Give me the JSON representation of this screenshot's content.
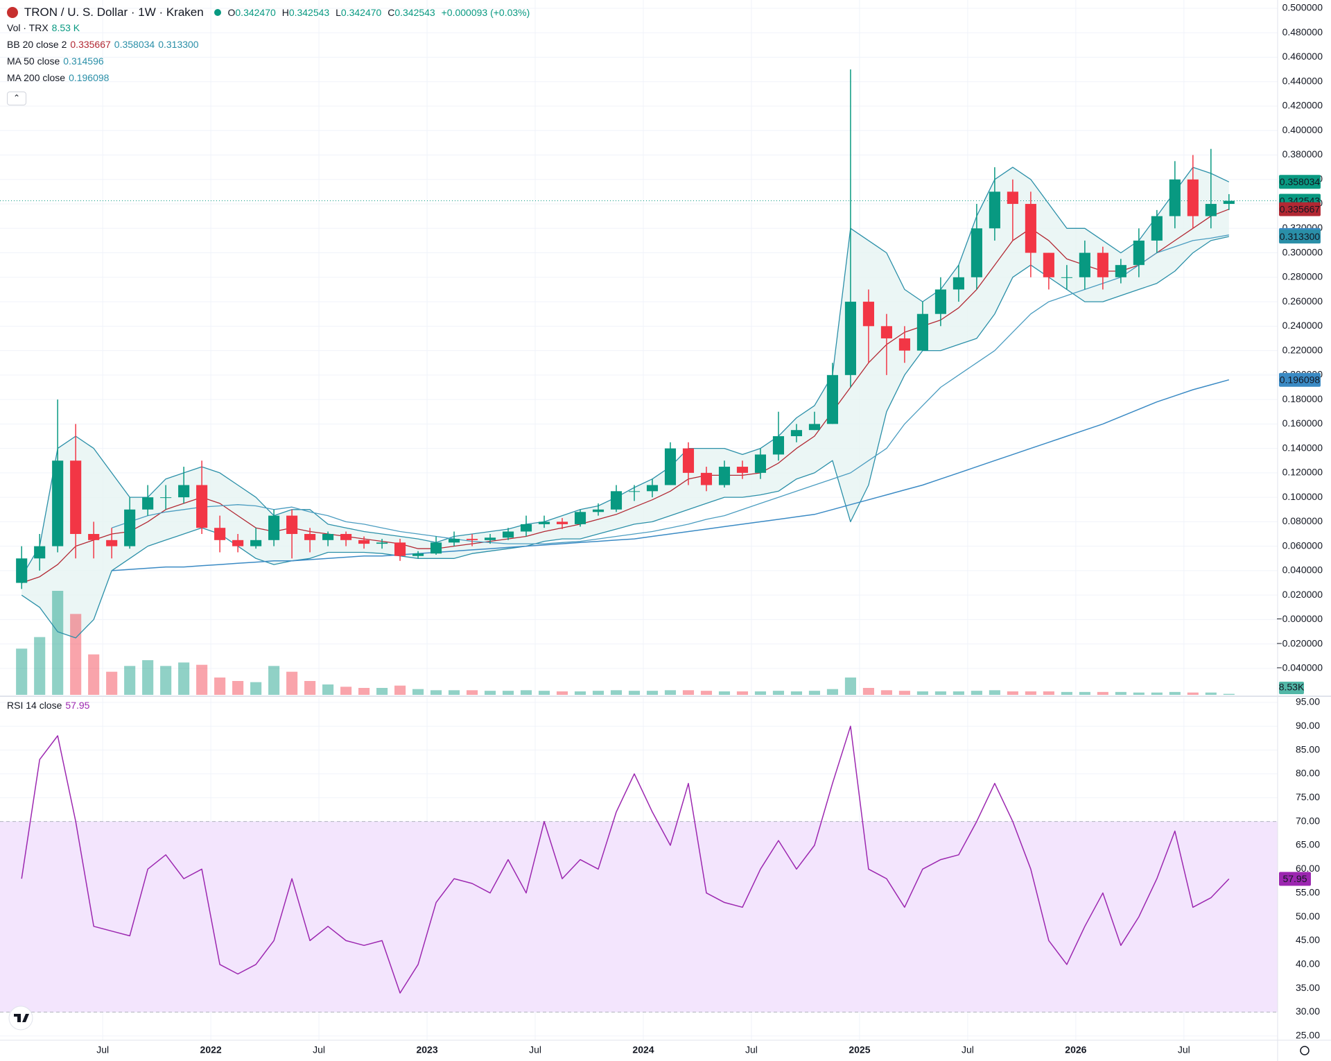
{
  "chart_data": [
    {
      "type": "candlestick",
      "title": "TRON / U. S. Dollar · 1W · Kraken",
      "ohlc_labels": [
        "O",
        "H",
        "L",
        "C"
      ],
      "ohlc_values": [
        "0.342470",
        "0.342543",
        "0.342470",
        "0.342543"
      ],
      "change": "+0.000093 (+0.03%)",
      "indicators": [
        {
          "name": "Vol · TRX",
          "values": [
            "8.53 K"
          ],
          "colors": [
            "#089981"
          ]
        },
        {
          "name": "BB 20 close 2",
          "values": [
            "0.335667",
            "0.358034",
            "0.313300"
          ],
          "colors": [
            "#b22833",
            "#2a8fa8",
            "#2a8fa8"
          ]
        },
        {
          "name": "MA 50 close",
          "values": [
            "0.314596"
          ],
          "colors": [
            "#2a8fa8"
          ]
        },
        {
          "name": "MA 200 close",
          "values": [
            "0.196098"
          ],
          "colors": [
            "#2a8fa8"
          ]
        }
      ],
      "up_color": "#089981",
      "down_color": "#f23645",
      "xlim": [
        -1.2,
        69.7
      ],
      "xticks": [
        {
          "value": 4.5,
          "label": "Jul"
        },
        {
          "value": 10.5,
          "label": "2022"
        },
        {
          "value": 16.5,
          "label": "Jul"
        },
        {
          "value": 22.5,
          "label": "2023"
        },
        {
          "value": 28.5,
          "label": "Jul"
        },
        {
          "value": 34.5,
          "label": "2024"
        },
        {
          "value": 40.5,
          "label": "Jul"
        },
        {
          "value": 46.5,
          "label": "2025"
        },
        {
          "value": 52.5,
          "label": "Jul"
        },
        {
          "value": 58.5,
          "label": "2026"
        },
        {
          "value": 64.5,
          "label": "Jul"
        }
      ],
      "ylim": [
        -0.0616,
        0.5068
      ],
      "yticks": [
        {
          "value": 0.5,
          "label": "0.500000"
        },
        {
          "value": 0.48,
          "label": "0.480000"
        },
        {
          "value": 0.46,
          "label": "0.460000"
        },
        {
          "value": 0.44,
          "label": "0.440000"
        },
        {
          "value": 0.42,
          "label": "0.420000"
        },
        {
          "value": 0.4,
          "label": "0.400000"
        },
        {
          "value": 0.38,
          "label": "0.380000"
        },
        {
          "value": 0.36,
          "label": "0.360000"
        },
        {
          "value": 0.34,
          "label": "0.340000"
        },
        {
          "value": 0.32,
          "label": "0.320000"
        },
        {
          "value": 0.3,
          "label": "0.300000"
        },
        {
          "value": 0.28,
          "label": "0.280000"
        },
        {
          "value": 0.26,
          "label": "0.260000"
        },
        {
          "value": 0.24,
          "label": "0.240000"
        },
        {
          "value": 0.22,
          "label": "0.220000"
        },
        {
          "value": 0.2,
          "label": "0.200000"
        },
        {
          "value": 0.18,
          "label": "0.180000"
        },
        {
          "value": 0.16,
          "label": "0.160000"
        },
        {
          "value": 0.14,
          "label": "0.140000"
        },
        {
          "value": 0.12,
          "label": "0.120000"
        },
        {
          "value": 0.1,
          "label": "0.100000"
        },
        {
          "value": 0.08,
          "label": "0.080000"
        },
        {
          "value": 0.06,
          "label": "0.060000"
        },
        {
          "value": 0.04,
          "label": "0.040000"
        },
        {
          "value": 0.02,
          "label": "0.020000"
        },
        {
          "value": 0,
          "label": "−0.000000"
        },
        {
          "value": -0.02,
          "label": "−0.020000"
        },
        {
          "value": -0.04,
          "label": "−0.040000"
        }
      ],
      "open": [
        0.03,
        0.05,
        0.06,
        0.13,
        0.07,
        0.065,
        0.06,
        0.09,
        0.1,
        0.1,
        0.11,
        0.075,
        0.065,
        0.06,
        0.065,
        0.085,
        0.07,
        0.065,
        0.07,
        0.065,
        0.062,
        0.063,
        0.052,
        0.054,
        0.063,
        0.066,
        0.065,
        0.067,
        0.072,
        0.078,
        0.08,
        0.078,
        0.088,
        0.09,
        0.105,
        0.105,
        0.11,
        0.14,
        0.12,
        0.11,
        0.125,
        0.12,
        0.135,
        0.15,
        0.155,
        0.16,
        0.2,
        0.26,
        0.24,
        0.23,
        0.22,
        0.25,
        0.27,
        0.28,
        0.32,
        0.35,
        0.34,
        0.3,
        0.28,
        0.28,
        0.3,
        0.28,
        0.29,
        0.31,
        0.33,
        0.36,
        0.33,
        0.34
      ],
      "high": [
        0.06,
        0.07,
        0.18,
        0.16,
        0.08,
        0.075,
        0.1,
        0.11,
        0.11,
        0.125,
        0.13,
        0.085,
        0.07,
        0.075,
        0.09,
        0.09,
        0.075,
        0.072,
        0.072,
        0.068,
        0.066,
        0.066,
        0.056,
        0.068,
        0.072,
        0.07,
        0.07,
        0.075,
        0.085,
        0.085,
        0.083,
        0.09,
        0.095,
        0.11,
        0.11,
        0.115,
        0.145,
        0.145,
        0.125,
        0.13,
        0.13,
        0.14,
        0.17,
        0.16,
        0.17,
        0.21,
        0.45,
        0.27,
        0.25,
        0.24,
        0.26,
        0.28,
        0.29,
        0.34,
        0.37,
        0.36,
        0.35,
        0.3,
        0.29,
        0.31,
        0.305,
        0.295,
        0.32,
        0.335,
        0.375,
        0.38,
        0.385,
        0.348
      ],
      "low": [
        0.025,
        0.04,
        0.055,
        0.05,
        0.05,
        0.05,
        0.058,
        0.085,
        0.09,
        0.095,
        0.07,
        0.055,
        0.055,
        0.058,
        0.06,
        0.05,
        0.055,
        0.06,
        0.06,
        0.058,
        0.058,
        0.048,
        0.05,
        0.053,
        0.06,
        0.06,
        0.062,
        0.065,
        0.068,
        0.075,
        0.074,
        0.076,
        0.085,
        0.088,
        0.097,
        0.1,
        0.11,
        0.11,
        0.105,
        0.108,
        0.115,
        0.115,
        0.13,
        0.145,
        0.155,
        0.16,
        0.19,
        0.21,
        0.2,
        0.21,
        0.22,
        0.24,
        0.26,
        0.27,
        0.31,
        0.31,
        0.28,
        0.27,
        0.27,
        0.27,
        0.27,
        0.275,
        0.28,
        0.3,
        0.32,
        0.32,
        0.32,
        0.335
      ],
      "close": [
        0.05,
        0.06,
        0.13,
        0.07,
        0.065,
        0.06,
        0.09,
        0.1,
        0.1,
        0.11,
        0.075,
        0.065,
        0.06,
        0.065,
        0.085,
        0.07,
        0.065,
        0.07,
        0.065,
        0.062,
        0.063,
        0.052,
        0.054,
        0.063,
        0.066,
        0.065,
        0.067,
        0.072,
        0.078,
        0.08,
        0.078,
        0.088,
        0.09,
        0.105,
        0.105,
        0.11,
        0.14,
        0.12,
        0.11,
        0.125,
        0.12,
        0.135,
        0.15,
        0.155,
        0.16,
        0.2,
        0.26,
        0.24,
        0.23,
        0.22,
        0.25,
        0.27,
        0.28,
        0.32,
        0.35,
        0.34,
        0.3,
        0.28,
        0.28,
        0.3,
        0.28,
        0.29,
        0.31,
        0.33,
        0.36,
        0.33,
        0.34,
        0.342543
      ],
      "volume": [
        400,
        500,
        900,
        700,
        350,
        200,
        250,
        300,
        250,
        280,
        260,
        150,
        120,
        110,
        250,
        200,
        120,
        90,
        70,
        60,
        60,
        80,
        50,
        40,
        40,
        40,
        35,
        35,
        40,
        35,
        30,
        30,
        35,
        40,
        35,
        35,
        40,
        40,
        35,
        30,
        30,
        30,
        35,
        30,
        35,
        50,
        150,
        60,
        40,
        35,
        30,
        30,
        30,
        35,
        40,
        30,
        30,
        30,
        25,
        25,
        25,
        25,
        20,
        20,
        25,
        20,
        20,
        8.53
      ],
      "bb_basis": [
        0.03,
        0.035,
        0.045,
        0.06,
        0.065,
        0.07,
        0.072,
        0.08,
        0.09,
        0.095,
        0.1,
        0.095,
        0.085,
        0.075,
        0.072,
        0.075,
        0.072,
        0.07,
        0.068,
        0.066,
        0.064,
        0.062,
        0.058,
        0.058,
        0.06,
        0.062,
        0.064,
        0.066,
        0.068,
        0.072,
        0.075,
        0.078,
        0.082,
        0.086,
        0.092,
        0.098,
        0.105,
        0.115,
        0.118,
        0.118,
        0.118,
        0.12,
        0.128,
        0.14,
        0.15,
        0.17,
        0.19,
        0.21,
        0.225,
        0.235,
        0.24,
        0.245,
        0.255,
        0.27,
        0.29,
        0.31,
        0.32,
        0.31,
        0.295,
        0.29,
        0.285,
        0.285,
        0.29,
        0.3,
        0.31,
        0.32,
        0.33,
        0.335667
      ],
      "bb_upper": [
        0.035,
        0.06,
        0.14,
        0.15,
        0.14,
        0.12,
        0.1,
        0.1,
        0.115,
        0.12,
        0.125,
        0.12,
        0.11,
        0.1,
        0.085,
        0.09,
        0.09,
        0.078,
        0.075,
        0.072,
        0.07,
        0.068,
        0.066,
        0.063,
        0.068,
        0.07,
        0.072,
        0.074,
        0.078,
        0.08,
        0.085,
        0.09,
        0.093,
        0.1,
        0.108,
        0.115,
        0.125,
        0.14,
        0.14,
        0.14,
        0.135,
        0.14,
        0.15,
        0.165,
        0.175,
        0.2,
        0.32,
        0.31,
        0.3,
        0.27,
        0.26,
        0.27,
        0.29,
        0.33,
        0.36,
        0.37,
        0.36,
        0.34,
        0.32,
        0.32,
        0.31,
        0.3,
        0.31,
        0.33,
        0.35,
        0.37,
        0.365,
        0.358034
      ],
      "bb_lower": [
        0.02,
        0.01,
        -0.01,
        -0.015,
        0.0,
        0.04,
        0.05,
        0.06,
        0.065,
        0.07,
        0.075,
        0.07,
        0.06,
        0.05,
        0.045,
        0.048,
        0.05,
        0.055,
        0.055,
        0.055,
        0.054,
        0.052,
        0.05,
        0.05,
        0.05,
        0.054,
        0.056,
        0.058,
        0.06,
        0.064,
        0.066,
        0.066,
        0.07,
        0.074,
        0.078,
        0.08,
        0.085,
        0.09,
        0.095,
        0.1,
        0.1,
        0.102,
        0.105,
        0.115,
        0.12,
        0.13,
        0.08,
        0.11,
        0.17,
        0.2,
        0.22,
        0.22,
        0.225,
        0.23,
        0.25,
        0.28,
        0.29,
        0.28,
        0.27,
        0.26,
        0.26,
        0.265,
        0.27,
        0.275,
        0.285,
        0.3,
        0.31,
        0.3133
      ],
      "ma50": [
        null,
        null,
        null,
        null,
        null,
        0.075,
        0.08,
        0.085,
        0.088,
        0.09,
        0.092,
        0.093,
        0.094,
        0.093,
        0.09,
        0.092,
        0.088,
        0.085,
        0.08,
        0.078,
        0.075,
        0.072,
        0.07,
        0.068,
        0.066,
        0.064,
        0.063,
        0.062,
        0.062,
        0.062,
        0.063,
        0.064,
        0.066,
        0.068,
        0.07,
        0.072,
        0.075,
        0.078,
        0.082,
        0.085,
        0.09,
        0.095,
        0.1,
        0.105,
        0.11,
        0.115,
        0.12,
        0.13,
        0.14,
        0.16,
        0.175,
        0.19,
        0.2,
        0.21,
        0.22,
        0.235,
        0.25,
        0.26,
        0.265,
        0.27,
        0.275,
        0.28,
        0.29,
        0.3,
        0.305,
        0.31,
        0.312,
        0.314596
      ],
      "ma200": [
        null,
        null,
        null,
        null,
        null,
        0.04,
        0.041,
        0.042,
        0.043,
        0.043,
        0.044,
        0.045,
        0.046,
        0.047,
        0.048,
        0.048,
        0.049,
        0.05,
        0.051,
        0.052,
        0.052,
        0.053,
        0.054,
        0.055,
        0.056,
        0.057,
        0.058,
        0.059,
        0.06,
        0.061,
        0.062,
        0.063,
        0.064,
        0.065,
        0.066,
        0.068,
        0.07,
        0.072,
        0.074,
        0.076,
        0.078,
        0.08,
        0.082,
        0.084,
        0.086,
        0.09,
        0.094,
        0.098,
        0.102,
        0.106,
        0.11,
        0.115,
        0.12,
        0.125,
        0.13,
        0.135,
        0.14,
        0.145,
        0.15,
        0.155,
        0.16,
        0.166,
        0.172,
        0.178,
        0.183,
        0.188,
        0.192,
        0.196098
      ],
      "basis_color": "#b22833",
      "band_color": "#2a8fa8",
      "band_fill": "#e6f4f2",
      "ma50_color": "#4a9cc0",
      "ma200_color": "#3a8ac4",
      "price_badges": [
        {
          "value": 0.358034,
          "label": "0.358034",
          "color": "#089981"
        },
        {
          "value": 0.342543,
          "label": "0.342543",
          "color": "#089981"
        },
        {
          "value": 0.335667,
          "label": "0.335667",
          "color": "#b22833"
        },
        {
          "value": 0.314596,
          "label": "0.314596",
          "color": "#3a8ac4"
        },
        {
          "value": 0.3133,
          "label": "0.313300",
          "color": "#2a8fa8"
        },
        {
          "value": 0.196098,
          "label": "0.196098",
          "color": "#3a8ac4"
        }
      ],
      "volume_badge": "8.53K"
    },
    {
      "type": "line",
      "legend": "RSI 14 close",
      "legend_value": "57.95",
      "color": "#9c27b0",
      "band_fill": "#f3e5fd",
      "band": {
        "lower": 30,
        "upper": 70
      },
      "ylim": [
        24.1,
        96
      ],
      "yticks": [
        {
          "value": 95,
          "label": "95.00"
        },
        {
          "value": 90,
          "label": "90.00"
        },
        {
          "value": 85,
          "label": "85.00"
        },
        {
          "value": 80,
          "label": "80.00"
        },
        {
          "value": 75,
          "label": "75.00"
        },
        {
          "value": 70,
          "label": "70.00"
        },
        {
          "value": 65,
          "label": "65.00"
        },
        {
          "value": 60,
          "label": "60.00"
        },
        {
          "value": 55,
          "label": "55.00"
        },
        {
          "value": 50,
          "label": "50.00"
        },
        {
          "value": 45,
          "label": "45.00"
        },
        {
          "value": 40,
          "label": "40.00"
        },
        {
          "value": 35,
          "label": "35.00"
        },
        {
          "value": 30,
          "label": "30.00"
        },
        {
          "value": 25,
          "label": "25.00"
        }
      ],
      "values": [
        58,
        83,
        88,
        70,
        48,
        47,
        46,
        60,
        63,
        58,
        60,
        40,
        38,
        40,
        45,
        58,
        45,
        48,
        45,
        44,
        45,
        34,
        40,
        53,
        58,
        57,
        55,
        62,
        55,
        70,
        58,
        62,
        60,
        72,
        80,
        72,
        65,
        78,
        55,
        53,
        52,
        60,
        66,
        60,
        65,
        78,
        90,
        60,
        58,
        52,
        60,
        62,
        63,
        70,
        78,
        70,
        60,
        45,
        40,
        48,
        55,
        44,
        50,
        58,
        68,
        52,
        54,
        57.95
      ],
      "badge": {
        "value": 57.95,
        "label": "57.95"
      }
    }
  ]
}
